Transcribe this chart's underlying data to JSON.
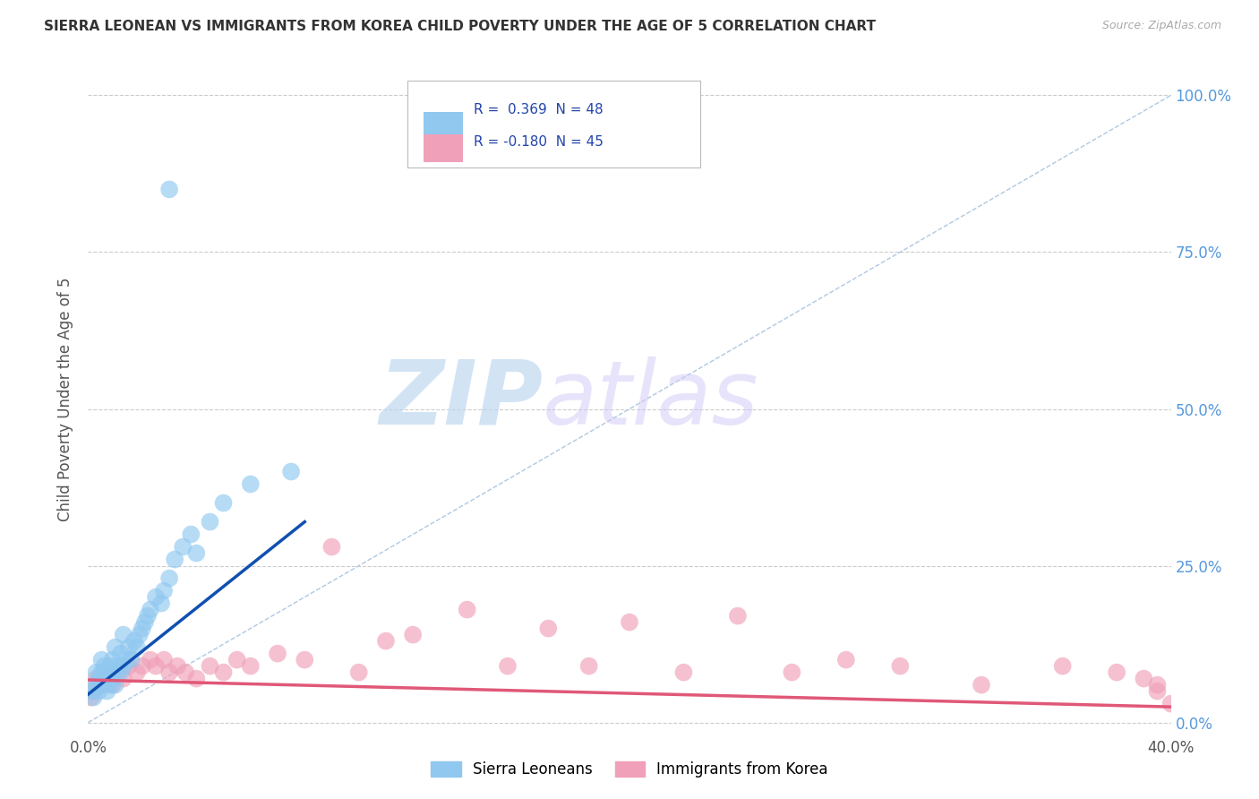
{
  "title": "SIERRA LEONEAN VS IMMIGRANTS FROM KOREA CHILD POVERTY UNDER THE AGE OF 5 CORRELATION CHART",
  "source": "Source: ZipAtlas.com",
  "ylabel": "Child Poverty Under the Age of 5",
  "xlim": [
    0.0,
    0.4
  ],
  "ylim": [
    -0.02,
    1.05
  ],
  "xticks": [
    0.0,
    0.1,
    0.2,
    0.3,
    0.4
  ],
  "xtick_labels": [
    "0.0%",
    "",
    "",
    "",
    "40.0%"
  ],
  "ytick_positions": [
    0.0,
    0.25,
    0.5,
    0.75,
    1.0
  ],
  "ytick_labels": [
    "",
    "",
    "",
    "",
    ""
  ],
  "right_ytick_positions": [
    0.0,
    0.25,
    0.5,
    0.75,
    1.0
  ],
  "right_ytick_labels": [
    "0.0%",
    "25.0%",
    "50.0%",
    "75.0%",
    "100.0%"
  ],
  "legend_r1": "R =  0.369  N = 48",
  "legend_r2": "R = -0.180  N = 45",
  "legend_label1": "Sierra Leoneans",
  "legend_label2": "Immigrants from Korea",
  "color_blue": "#90C8F0",
  "color_pink": "#F0A0B8",
  "line_blue": "#1050B0",
  "line_pink": "#E05878",
  "watermark_zip": "ZIP",
  "watermark_atlas": "atlas",
  "background_color": "#FFFFFF",
  "grid_color": "#CCCCCC",
  "blue_x": [
    0.001,
    0.002,
    0.003,
    0.003,
    0.004,
    0.004,
    0.005,
    0.005,
    0.005,
    0.006,
    0.006,
    0.007,
    0.007,
    0.008,
    0.008,
    0.009,
    0.009,
    0.01,
    0.01,
    0.01,
    0.011,
    0.012,
    0.012,
    0.013,
    0.013,
    0.014,
    0.015,
    0.016,
    0.017,
    0.018,
    0.019,
    0.02,
    0.021,
    0.022,
    0.023,
    0.025,
    0.027,
    0.028,
    0.03,
    0.032,
    0.035,
    0.038,
    0.04,
    0.045,
    0.05,
    0.06,
    0.075,
    0.03
  ],
  "blue_y": [
    0.05,
    0.04,
    0.06,
    0.08,
    0.05,
    0.07,
    0.06,
    0.08,
    0.1,
    0.07,
    0.09,
    0.05,
    0.08,
    0.06,
    0.09,
    0.07,
    0.1,
    0.06,
    0.08,
    0.12,
    0.09,
    0.08,
    0.11,
    0.09,
    0.14,
    0.1,
    0.12,
    0.1,
    0.13,
    0.12,
    0.14,
    0.15,
    0.16,
    0.17,
    0.18,
    0.2,
    0.19,
    0.21,
    0.23,
    0.26,
    0.28,
    0.3,
    0.27,
    0.32,
    0.35,
    0.38,
    0.4,
    0.85
  ],
  "pink_x": [
    0.001,
    0.002,
    0.003,
    0.005,
    0.007,
    0.009,
    0.011,
    0.013,
    0.015,
    0.018,
    0.02,
    0.023,
    0.025,
    0.028,
    0.03,
    0.033,
    0.036,
    0.04,
    0.045,
    0.05,
    0.055,
    0.06,
    0.07,
    0.08,
    0.09,
    0.1,
    0.11,
    0.12,
    0.14,
    0.155,
    0.17,
    0.185,
    0.2,
    0.22,
    0.24,
    0.26,
    0.28,
    0.3,
    0.33,
    0.36,
    0.38,
    0.39,
    0.395,
    0.395,
    0.4
  ],
  "pink_y": [
    0.04,
    0.05,
    0.07,
    0.06,
    0.07,
    0.06,
    0.08,
    0.07,
    0.09,
    0.08,
    0.09,
    0.1,
    0.09,
    0.1,
    0.08,
    0.09,
    0.08,
    0.07,
    0.09,
    0.08,
    0.1,
    0.09,
    0.11,
    0.1,
    0.28,
    0.08,
    0.13,
    0.14,
    0.18,
    0.09,
    0.15,
    0.09,
    0.16,
    0.08,
    0.17,
    0.08,
    0.1,
    0.09,
    0.06,
    0.09,
    0.08,
    0.07,
    0.06,
    0.05,
    0.03
  ],
  "blue_line_x": [
    0.0,
    0.08
  ],
  "blue_line_y": [
    0.045,
    0.32
  ],
  "pink_line_x": [
    0.0,
    0.4
  ],
  "pink_line_y": [
    0.068,
    0.025
  ],
  "diag_line_x": [
    0.0,
    0.4
  ],
  "diag_line_y": [
    0.0,
    1.0
  ]
}
